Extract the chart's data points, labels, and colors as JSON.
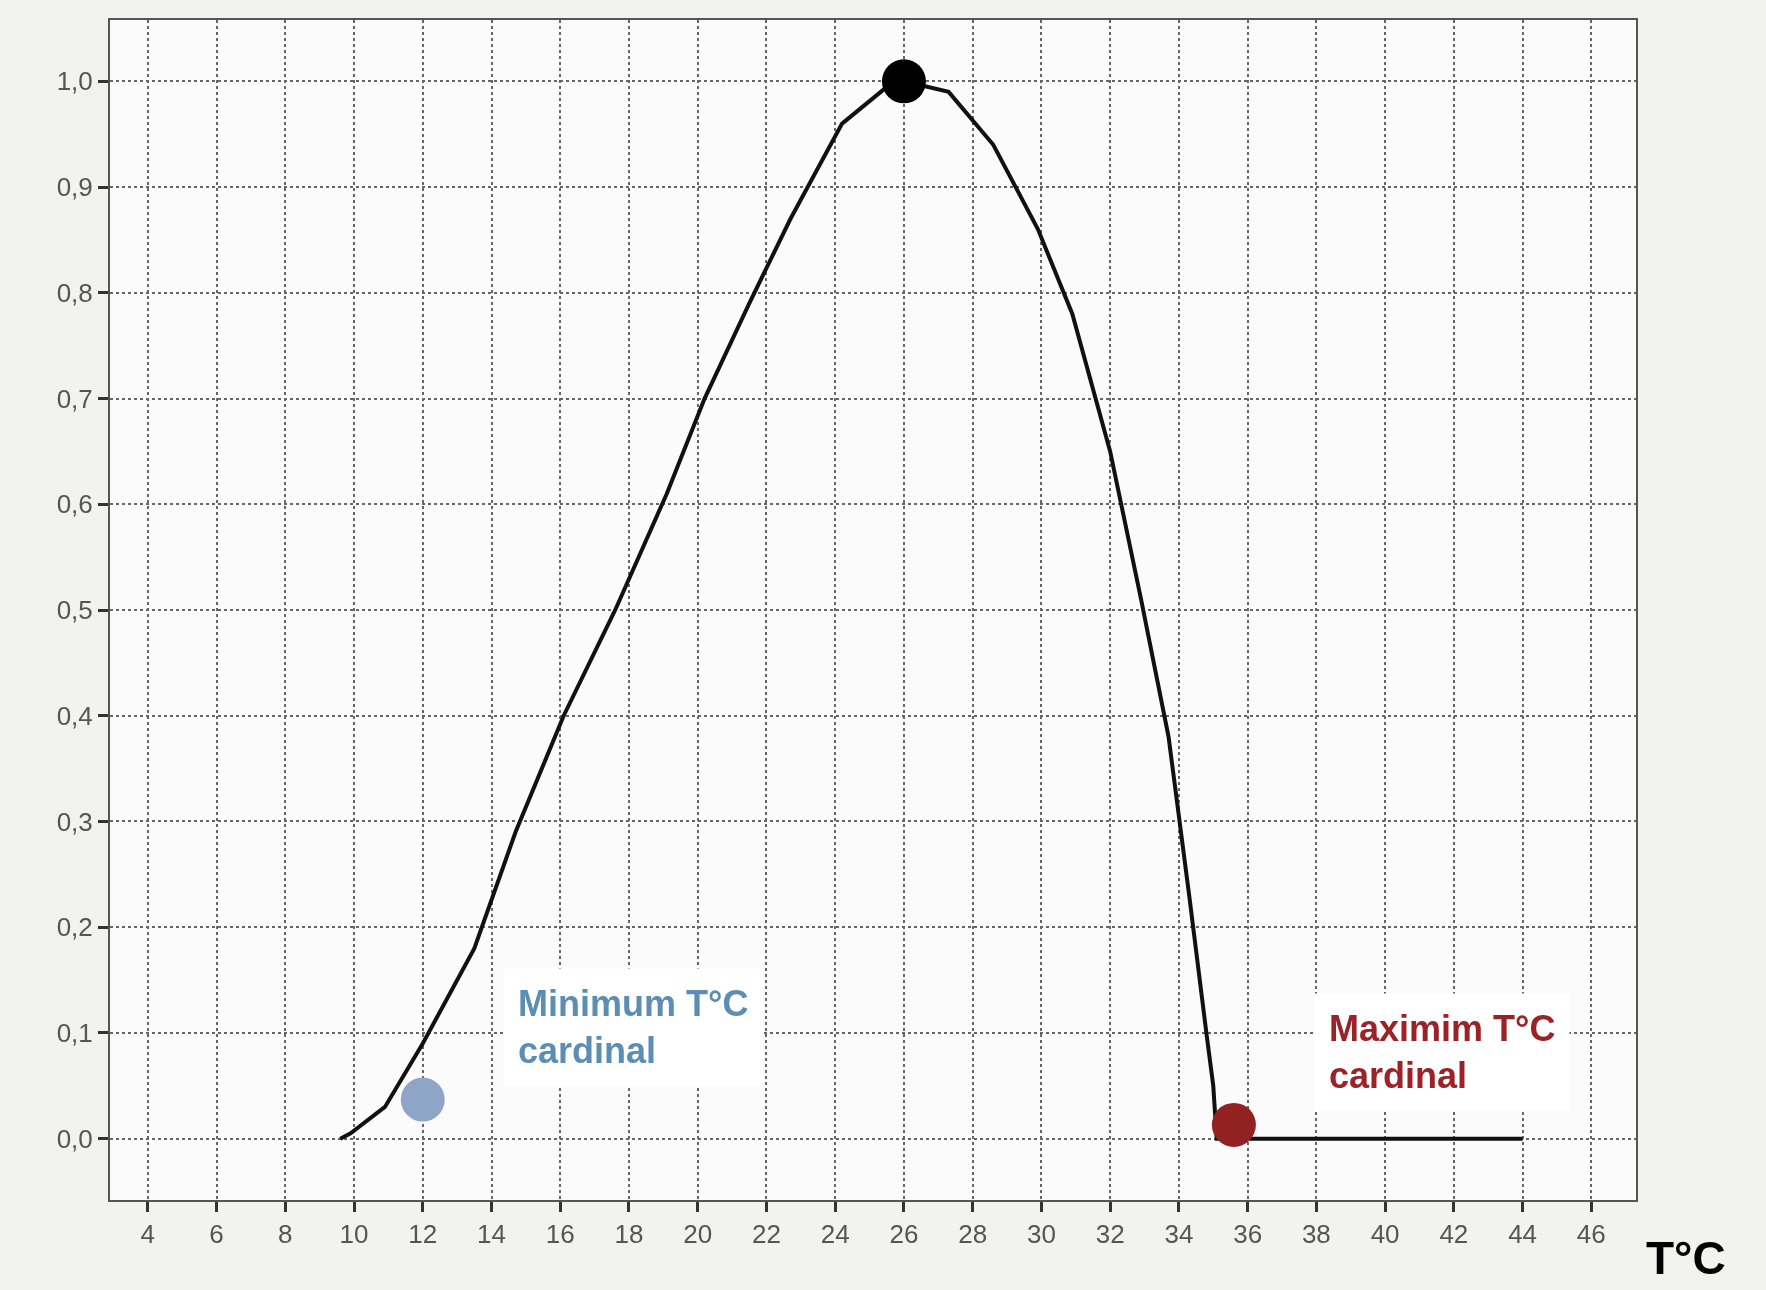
{
  "chart_data": {
    "type": "line",
    "xlabel": "T°C",
    "xlim": [
      2.9,
      47.3
    ],
    "ylim": [
      -0.058,
      1.058
    ],
    "xticks": [
      4,
      6,
      8,
      10,
      12,
      14,
      16,
      18,
      20,
      22,
      24,
      26,
      28,
      30,
      32,
      34,
      36,
      38,
      40,
      42,
      44,
      46
    ],
    "yticks": [
      {
        "value": 0,
        "label": "0,0"
      },
      {
        "value": 0.1,
        "label": "0,1"
      },
      {
        "value": 0.2,
        "label": "0,2"
      },
      {
        "value": 0.3,
        "label": "0,3"
      },
      {
        "value": 0.4,
        "label": "0,4"
      },
      {
        "value": 0.5,
        "label": "0,5"
      },
      {
        "value": 0.6,
        "label": "0,6"
      },
      {
        "value": 0.7,
        "label": "0,7"
      },
      {
        "value": 0.8,
        "label": "0,8"
      },
      {
        "value": 0.9,
        "label": "0,9"
      },
      {
        "value": 1.0,
        "label": "1,0"
      }
    ],
    "grid": true,
    "series": [
      {
        "color": "#111111",
        "marker": "none",
        "x": [
          9.6,
          9.9,
          10.9,
          12.0,
          13.5,
          14.7,
          16.1,
          17.6,
          19.1,
          20.2,
          21.5,
          22.7,
          24.2,
          25.7,
          26.0,
          27.3,
          28.6,
          29.9,
          30.9,
          32.0,
          32.9,
          33.7,
          34.3,
          34.8,
          35.0,
          35.1,
          44.0
        ],
        "values": [
          0,
          0.005,
          0.03,
          0.09,
          0.18,
          0.29,
          0.4,
          0.5,
          0.61,
          0.7,
          0.79,
          0.87,
          0.96,
          1.0,
          1.0,
          0.99,
          0.94,
          0.86,
          0.78,
          0.65,
          0.51,
          0.38,
          0.23,
          0.1,
          0.05,
          0,
          0
        ]
      },
      {
        "type": "scatter",
        "color": "#8fa5c8",
        "marker": "circle",
        "x": [
          12.0
        ],
        "values": [
          0.037
        ]
      },
      {
        "type": "scatter",
        "color": "#922121",
        "marker": "circle",
        "x": [
          35.6
        ],
        "values": [
          0.013
        ]
      },
      {
        "type": "scatter",
        "color": "#000000",
        "marker": "circle",
        "x": [
          26.0
        ],
        "values": [
          1.0
        ]
      }
    ],
    "annotations": [
      {
        "text": "Minimum T°C\ncardinal",
        "x": 12.0,
        "y": 0.037
      },
      {
        "text": "Maximim T°C\ncardinal",
        "x": 35.6,
        "y": 0.013
      }
    ]
  }
}
